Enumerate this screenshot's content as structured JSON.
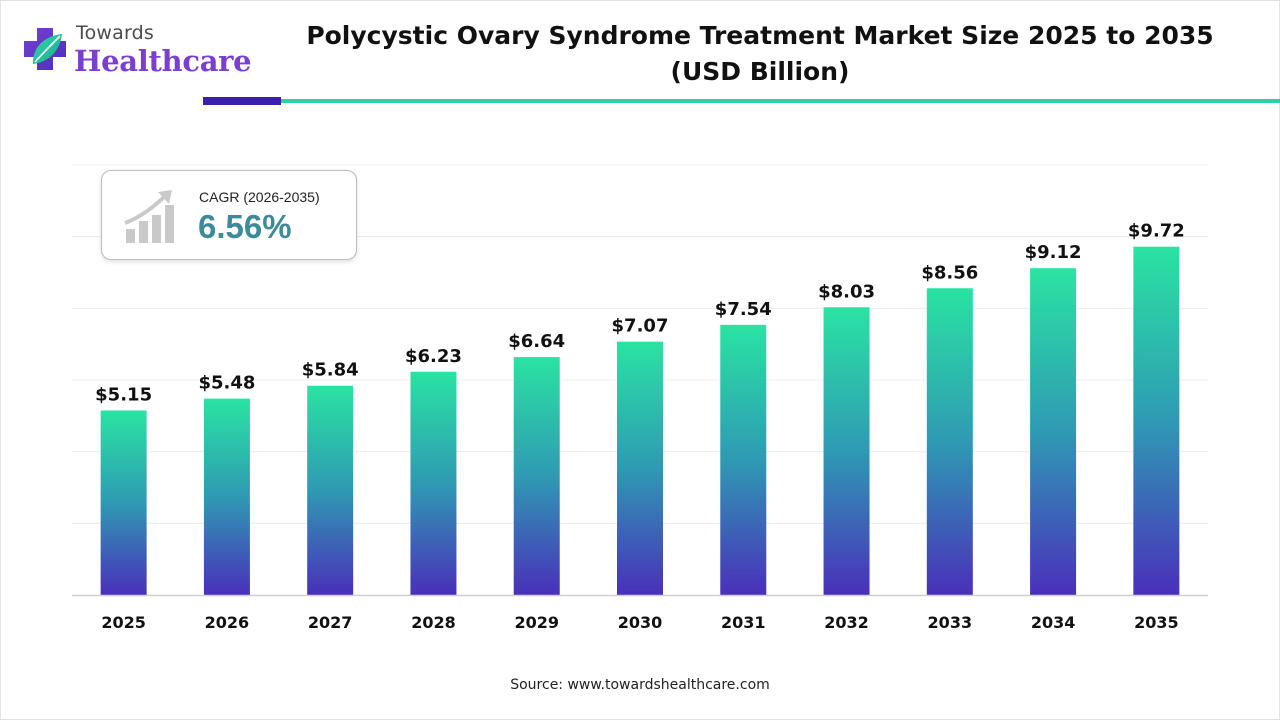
{
  "brand": {
    "line1": "Towards",
    "line2": "Healthcare"
  },
  "header": {
    "title_line1": "Polycystic Ovary Syndrome Treatment Market Size 2025 to 2035",
    "title_line2": "(USD Billion)"
  },
  "cagr": {
    "label": "CAGR (2026-2035)",
    "value": "6.56%"
  },
  "footer": {
    "source": "Source: www.towardshealthcare.com"
  },
  "colors": {
    "bar_top": "#2ae3a2",
    "bar_mid": "#2f9ab4",
    "bar_bottom": "#4a2fba",
    "brand_purple": "#7a3fd0",
    "cagr_teal": "#3d8a98",
    "rule_green": "#2fd0a4",
    "rule_purple": "#3b1fa8"
  },
  "chart_data": {
    "type": "bar",
    "categories": [
      "2025",
      "2026",
      "2027",
      "2028",
      "2029",
      "2030",
      "2031",
      "2032",
      "2033",
      "2034",
      "2035"
    ],
    "values": [
      5.15,
      5.48,
      5.84,
      6.23,
      6.64,
      7.07,
      7.54,
      8.03,
      8.56,
      9.12,
      9.72
    ],
    "value_labels": [
      "$5.15",
      "$5.48",
      "$5.84",
      "$6.23",
      "$6.64",
      "$7.07",
      "$7.54",
      "$8.03",
      "$8.56",
      "$9.12",
      "$9.72"
    ],
    "title": "Polycystic Ovary Syndrome Treatment Market Size 2025 to 2035 (USD Billion)",
    "ylim": [
      0,
      12
    ],
    "grid": true,
    "legend": "none"
  }
}
